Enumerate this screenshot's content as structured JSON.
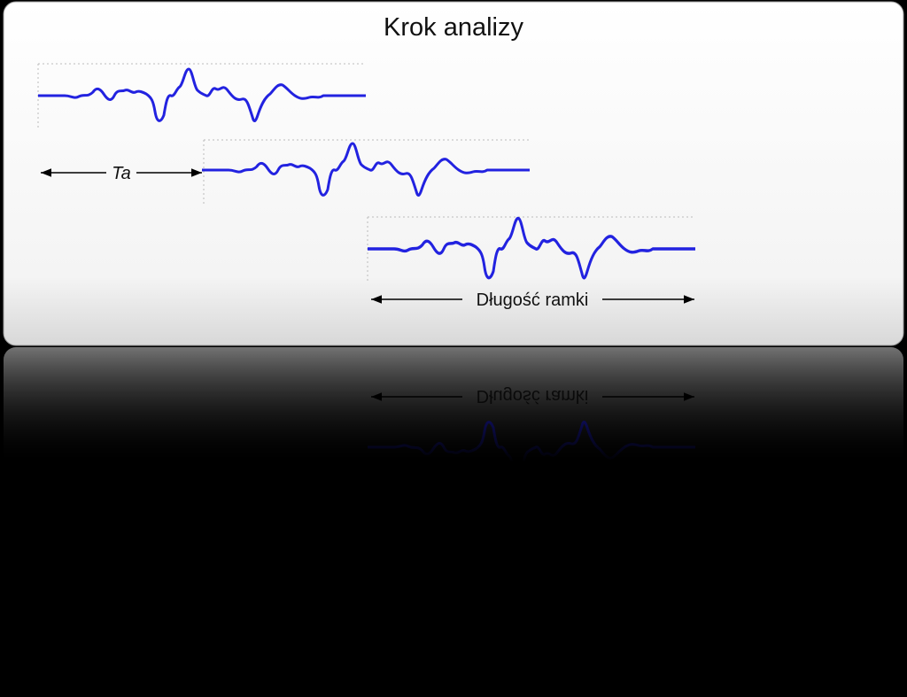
{
  "title": "Krok analizy",
  "labels": {
    "step": "Ta",
    "frame_length": "Długość ramki"
  }
}
